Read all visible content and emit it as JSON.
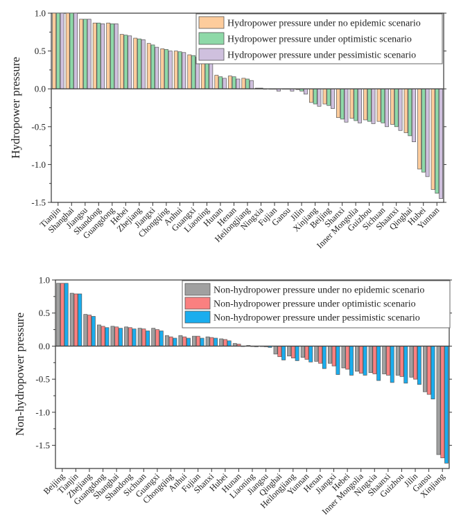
{
  "chart_data": [
    {
      "type": "bar",
      "title": "",
      "xlabel": "",
      "ylabel": "Hydropower pressure",
      "ylim": [
        -1.5,
        1.0
      ],
      "yticks": [
        "1.0",
        "0.5",
        "0.0",
        "-0.5",
        "-1.0",
        "-1.5"
      ],
      "ytick_values": [
        1.0,
        0.5,
        0.0,
        -0.5,
        -1.0,
        -1.5
      ],
      "grid": false,
      "legend_position": "top-right",
      "categories": [
        "Tianjin",
        "Shanghai",
        "Jiangsu",
        "Shandong",
        "Guangdong",
        "Hebei",
        "Zhejiang",
        "Jiangxi",
        "Chongqing",
        "Anhui",
        "Guangxi",
        "Liaoning",
        "Hunan",
        "Henan",
        "Heilongjiang",
        "Ningxia",
        "Fujian",
        "Gansu",
        "Jilin",
        "Xinjiang",
        "Beijing",
        "Shanxi",
        "Inner Mongolia",
        "Guizhou",
        "Sichuan",
        "Shaanxi",
        "Qinghai",
        "Hubei",
        "Yunnan"
      ],
      "series": [
        {
          "name": "Hydropower pressure under no epidemic scenario",
          "color": "#fdcc9c",
          "values": [
            1.0,
            1.0,
            0.92,
            0.87,
            0.87,
            0.72,
            0.67,
            0.6,
            0.53,
            0.5,
            0.45,
            0.35,
            0.18,
            0.17,
            0.14,
            0.01,
            0.0,
            0.0,
            -0.01,
            -0.18,
            -0.2,
            -0.38,
            -0.39,
            -0.41,
            -0.43,
            -0.47,
            -0.58,
            -1.06,
            -1.33
          ]
        },
        {
          "name": "Hydropower pressure under optimistic scenario",
          "color": "#8ed9a8",
          "values": [
            1.0,
            1.0,
            0.92,
            0.87,
            0.86,
            0.71,
            0.66,
            0.58,
            0.52,
            0.49,
            0.44,
            0.34,
            0.16,
            0.16,
            0.13,
            0.01,
            0.0,
            0.0,
            -0.03,
            -0.2,
            -0.22,
            -0.4,
            -0.42,
            -0.43,
            -0.45,
            -0.5,
            -0.62,
            -1.1,
            -1.38
          ]
        },
        {
          "name": "Hydropower pressure under pessimistic scenario",
          "color": "#cfc0de",
          "values": [
            1.0,
            1.0,
            0.92,
            0.86,
            0.86,
            0.7,
            0.65,
            0.55,
            0.5,
            0.48,
            0.42,
            0.33,
            0.14,
            0.13,
            0.11,
            0.0,
            -0.03,
            -0.03,
            -0.07,
            -0.23,
            -0.26,
            -0.44,
            -0.45,
            -0.46,
            -0.5,
            -0.55,
            -0.7,
            -1.16,
            -1.45
          ]
        }
      ]
    },
    {
      "type": "bar",
      "title": "",
      "xlabel": "",
      "ylabel": "Non-hydropower pressure",
      "ylim": [
        -1.75,
        1.0
      ],
      "yticks": [
        "1.0",
        "0.5",
        "0.0",
        "-0.5",
        "-1.0",
        "-1.5"
      ],
      "ytick_values": [
        1.0,
        0.5,
        0.0,
        -0.5,
        -1.0,
        -1.5
      ],
      "grid": false,
      "legend_position": "top-right",
      "categories": [
        "Beijing",
        "Tianjin",
        "Zhejiang",
        "Guangdong",
        "Shanghai",
        "Shandong",
        "Sichuan",
        "Guangxi",
        "Chongqing",
        "Anhui",
        "Fujian",
        "Shanxi",
        "Hubei",
        "Hunan",
        "Liaoning",
        "Jiangsu",
        "Qinghai",
        "Heilongjiang",
        "Yunnan",
        "Henan",
        "Jiangxi",
        "Hebei",
        "Inner Mongolia",
        "Ningxia",
        "Shaanxi",
        "Guizhou",
        "Jilin",
        "Gansu",
        "Xinjiang"
      ],
      "series": [
        {
          "name": "Non-hydropower pressure under no epidemic scenario",
          "color": "#a0a0a0",
          "values": [
            0.95,
            0.8,
            0.48,
            0.32,
            0.3,
            0.29,
            0.27,
            0.27,
            0.16,
            0.16,
            0.15,
            0.14,
            0.11,
            0.04,
            0.01,
            0.0,
            -0.12,
            -0.15,
            -0.17,
            -0.23,
            -0.26,
            -0.33,
            -0.38,
            -0.4,
            -0.42,
            -0.44,
            -0.47,
            -0.69,
            -1.64
          ]
        },
        {
          "name": "Non-hydropower pressure under optimistic scenario",
          "color": "#fa8080",
          "values": [
            0.95,
            0.79,
            0.47,
            0.3,
            0.29,
            0.28,
            0.26,
            0.25,
            0.14,
            0.14,
            0.15,
            0.13,
            0.1,
            0.03,
            0.0,
            -0.01,
            -0.16,
            -0.18,
            -0.2,
            -0.26,
            -0.3,
            -0.35,
            -0.41,
            -0.42,
            -0.44,
            -0.46,
            -0.5,
            -0.73,
            -1.69
          ]
        },
        {
          "name": "Non-hydropower pressure under pessimistic scenario",
          "color": "#1aadee",
          "values": [
            0.95,
            0.79,
            0.45,
            0.28,
            0.27,
            0.26,
            0.23,
            0.23,
            0.12,
            0.12,
            0.12,
            0.12,
            0.08,
            0.0,
            -0.01,
            -0.02,
            -0.21,
            -0.22,
            -0.24,
            -0.34,
            -0.43,
            -0.44,
            -0.44,
            -0.52,
            -0.55,
            -0.56,
            -0.58,
            -0.8,
            -1.77
          ]
        }
      ]
    }
  ]
}
